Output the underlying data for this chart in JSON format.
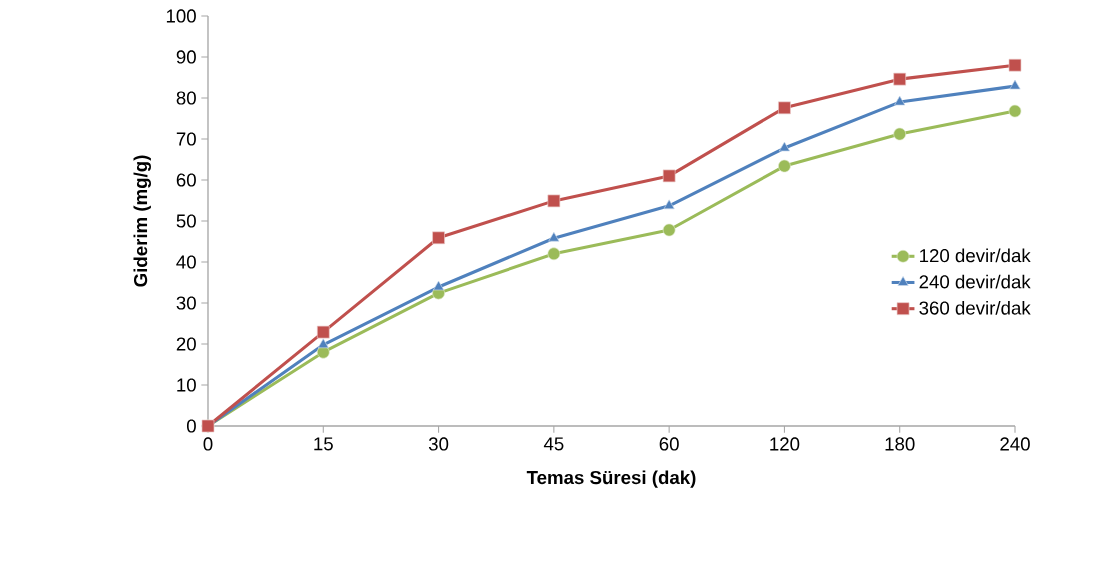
{
  "chart_data": {
    "type": "line",
    "xlabel": "Temas Süresi (dak)",
    "ylabel": "Giderim  (mg/g)",
    "categories": [
      "0",
      "15",
      "30",
      "45",
      "60",
      "120",
      "180",
      "240"
    ],
    "ylim": [
      0,
      100
    ],
    "yticks": [
      0,
      10,
      20,
      30,
      40,
      50,
      60,
      70,
      80,
      90,
      100
    ],
    "grid": false,
    "legend": "right",
    "line_style": "solid",
    "series": [
      {
        "name": "120 devir/dak",
        "color": "#9bbb59",
        "marker": "circle",
        "values": [
          0,
          18,
          32.4,
          42,
          47.8,
          63.4,
          71.2,
          76.8
        ]
      },
      {
        "name": "240 devir/dak",
        "color": "#4f81bd",
        "marker": "triangle",
        "values": [
          0,
          19.8,
          33.9,
          45.8,
          53.7,
          67.8,
          79,
          82.9
        ]
      },
      {
        "name": "360 devir/dak",
        "color": "#c0504d",
        "marker": "square",
        "values": [
          0,
          22.9,
          45.9,
          54.9,
          61,
          77.6,
          84.6,
          88
        ]
      }
    ]
  }
}
